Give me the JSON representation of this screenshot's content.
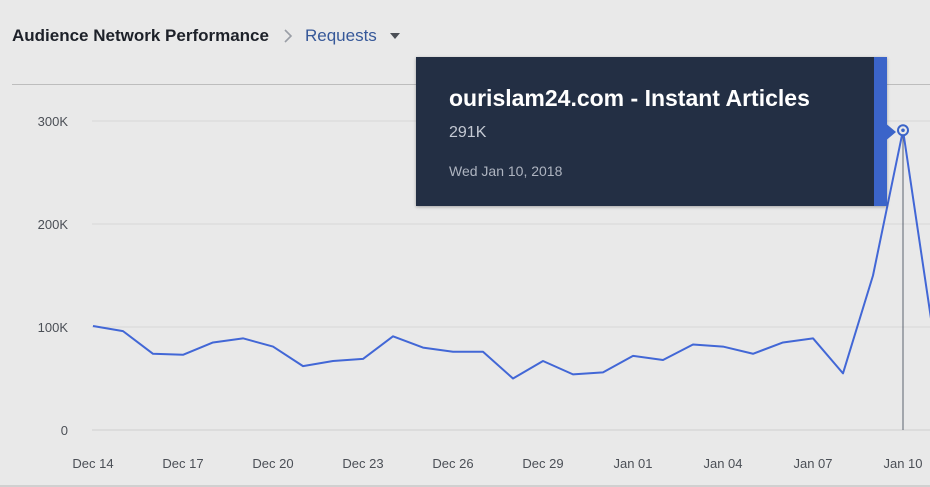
{
  "header": {
    "title": "Audience Network Performance",
    "breadcrumb_separator_icon": "chevron-right-icon",
    "metric_label": "Requests",
    "dropdown_icon": "caret-down-icon"
  },
  "tooltip": {
    "title": "ourislam24.com - Instant Articles",
    "value": "291K",
    "date": "Wed Jan 10, 2018",
    "accent_color": "#3b64c9",
    "background_color": "#232f44"
  },
  "chart_data": {
    "type": "line",
    "title": "",
    "xlabel": "",
    "ylabel": "",
    "ylim": [
      0,
      300000
    ],
    "yticks": [
      {
        "value": 0,
        "label": "0"
      },
      {
        "value": 100000,
        "label": "100K"
      },
      {
        "value": 200000,
        "label": "200K"
      },
      {
        "value": 300000,
        "label": "300K"
      }
    ],
    "x": [
      "Dec 14",
      "Dec 15",
      "Dec 16",
      "Dec 17",
      "Dec 18",
      "Dec 19",
      "Dec 20",
      "Dec 21",
      "Dec 22",
      "Dec 23",
      "Dec 24",
      "Dec 25",
      "Dec 26",
      "Dec 27",
      "Dec 28",
      "Dec 29",
      "Dec 30",
      "Dec 31",
      "Jan 01",
      "Jan 02",
      "Jan 03",
      "Jan 04",
      "Jan 05",
      "Jan 06",
      "Jan 07",
      "Jan 08",
      "Jan 09",
      "Jan 10",
      "Jan 11"
    ],
    "xtick_labels": [
      "Dec 14",
      "Dec 17",
      "Dec 20",
      "Dec 23",
      "Dec 26",
      "Dec 29",
      "Jan 01",
      "Jan 04",
      "Jan 07",
      "Jan 10"
    ],
    "series": [
      {
        "values": [
          101000,
          96000,
          74000,
          73000,
          85000,
          89000,
          81000,
          62000,
          67000,
          69000,
          91000,
          80000,
          76000,
          76000,
          50000,
          67000,
          54000,
          56000,
          72000,
          68000,
          83000,
          81000,
          74000,
          85000,
          89000,
          55000,
          150000,
          291000,
          95000
        ],
        "color": "#4267d6"
      }
    ],
    "highlight": {
      "x": "Jan 10",
      "value": 291000
    },
    "grid": true,
    "legend": "none"
  }
}
